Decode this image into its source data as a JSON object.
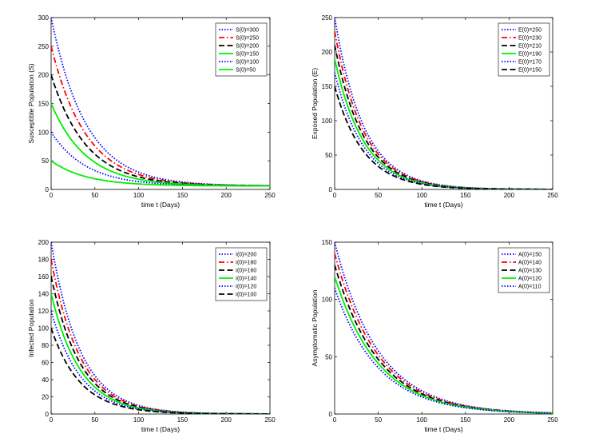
{
  "chart_data": [
    {
      "type": "line",
      "xlabel": "time t (Days)",
      "ylabel": "Susceptible Population (S)",
      "xlim": [
        0,
        250
      ],
      "ylim": [
        0,
        300
      ],
      "xticks": [
        0,
        50,
        100,
        150,
        200,
        250
      ],
      "yticks": [
        0,
        50,
        100,
        150,
        200,
        250,
        300
      ],
      "legend_position": "top-right",
      "asymptote": 6,
      "decay_rate": 0.025,
      "series": [
        {
          "name": "S(0)=300",
          "initial": 300,
          "color": "#0000ff",
          "dash": "dotted"
        },
        {
          "name": "S(0)=250",
          "initial": 250,
          "color": "#ff0000",
          "dash": "dashdot"
        },
        {
          "name": "S(0)=200",
          "initial": 200,
          "color": "#000000",
          "dash": "dashed"
        },
        {
          "name": "S(0)=150",
          "initial": 150,
          "color": "#00ee00",
          "dash": "solid"
        },
        {
          "name": "S(0)=100",
          "initial": 100,
          "color": "#0000ff",
          "dash": "dotted"
        },
        {
          "name": "S(0)=50",
          "initial": 50,
          "color": "#00ee00",
          "dash": "solid"
        }
      ]
    },
    {
      "type": "line",
      "xlabel": "time t (Days)",
      "ylabel": "Exposed Population (E)",
      "xlim": [
        0,
        250
      ],
      "ylim": [
        0,
        250
      ],
      "xticks": [
        0,
        50,
        100,
        150,
        200,
        250
      ],
      "yticks": [
        0,
        50,
        100,
        150,
        200,
        250
      ],
      "legend_position": "top-right",
      "asymptote": 0,
      "decay_rate": 0.03,
      "series": [
        {
          "name": "E(0)=250",
          "initial": 250,
          "color": "#0000ff",
          "dash": "dotted"
        },
        {
          "name": "E(0)=230",
          "initial": 230,
          "color": "#ff0000",
          "dash": "dashdot"
        },
        {
          "name": "E(0)=210",
          "initial": 210,
          "color": "#000000",
          "dash": "dashed"
        },
        {
          "name": "E(0)=190",
          "initial": 190,
          "color": "#00ee00",
          "dash": "solid"
        },
        {
          "name": "E(0)=170",
          "initial": 170,
          "color": "#0000ff",
          "dash": "dotted"
        },
        {
          "name": "E(0)=150",
          "initial": 150,
          "color": "#000000",
          "dash": "dashed"
        }
      ]
    },
    {
      "type": "line",
      "xlabel": "time t (Days)",
      "ylabel": "Infected Population",
      "xlim": [
        0,
        250
      ],
      "ylim": [
        0,
        200
      ],
      "xticks": [
        0,
        50,
        100,
        150,
        200,
        250
      ],
      "yticks": [
        0,
        20,
        40,
        60,
        80,
        100,
        120,
        140,
        160,
        180,
        200
      ],
      "legend_position": "top-right",
      "asymptote": 0,
      "decay_rate": 0.03,
      "series": [
        {
          "name": "I(0)=200",
          "initial": 200,
          "color": "#0000ff",
          "dash": "dotted"
        },
        {
          "name": "I(0)=180",
          "initial": 180,
          "color": "#ff0000",
          "dash": "dashdot"
        },
        {
          "name": "I(0)=160",
          "initial": 160,
          "color": "#000000",
          "dash": "dashed"
        },
        {
          "name": "I(0)=140",
          "initial": 140,
          "color": "#00ee00",
          "dash": "solid"
        },
        {
          "name": "I(0)=120",
          "initial": 120,
          "color": "#0000ff",
          "dash": "dotted"
        },
        {
          "name": "I(0)=100",
          "initial": 100,
          "color": "#000000",
          "dash": "dashed"
        }
      ]
    },
    {
      "type": "line",
      "xlabel": "time t (Days)",
      "ylabel": "Asymptomatic Population",
      "xlim": [
        0,
        250
      ],
      "ylim": [
        0,
        150
      ],
      "xticks": [
        0,
        50,
        100,
        150,
        200,
        250
      ],
      "yticks": [
        0,
        50,
        100,
        150
      ],
      "legend_position": "top-right",
      "asymptote": 0,
      "decay_rate": 0.02,
      "series": [
        {
          "name": "A(0)=150",
          "initial": 150,
          "color": "#0000ff",
          "dash": "dotted"
        },
        {
          "name": "A(0)=140",
          "initial": 140,
          "color": "#ff0000",
          "dash": "dashdot"
        },
        {
          "name": "A(0)=130",
          "initial": 130,
          "color": "#000000",
          "dash": "dashed"
        },
        {
          "name": "A(0)=120",
          "initial": 120,
          "color": "#00ee00",
          "dash": "solid"
        },
        {
          "name": "A(0)=110",
          "initial": 110,
          "color": "#0000ff",
          "dash": "dotted"
        }
      ]
    }
  ]
}
